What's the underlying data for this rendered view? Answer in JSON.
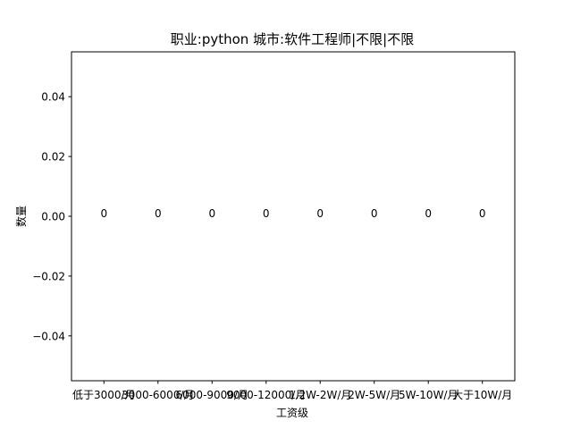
{
  "chart_data": {
    "type": "bar",
    "title": "职业:python      城市:软件工程师|不限|不限",
    "xlabel": "工资级",
    "ylabel": "数量",
    "categories": [
      "低于3000/月",
      "3000-6000/月",
      "6000-9000/月",
      "9000-12000/月",
      "1.2W-2W/月",
      "2W-5W/月",
      "5W-10W/月",
      "大于10W/月"
    ],
    "values": [
      0,
      0,
      0,
      0,
      0,
      0,
      0,
      0
    ],
    "data_labels": [
      "0",
      "0",
      "0",
      "0",
      "0",
      "0",
      "0",
      "0"
    ],
    "ylim": [
      -0.055,
      0.055
    ],
    "yticks": [
      -0.04,
      -0.02,
      0.0,
      0.02,
      0.04
    ],
    "ytick_labels": [
      "−0.04",
      "−0.02",
      "0.00",
      "0.02",
      "0.04"
    ],
    "grid": false,
    "legend": "none"
  }
}
